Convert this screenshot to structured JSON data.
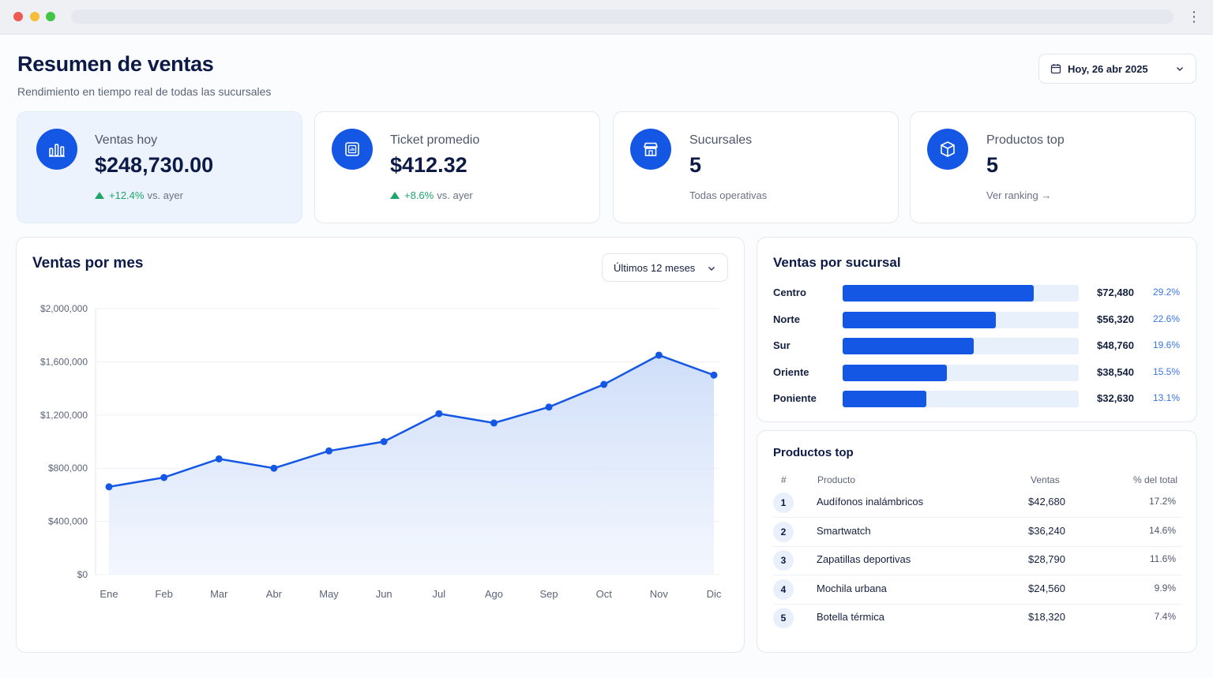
{
  "header": {
    "title": "Resumen de ventas",
    "subtitle": "Rendimiento en tiempo real de todas las sucursales",
    "date_label": "Hoy, 26 abr 2025"
  },
  "kpis": [
    {
      "label": "Ventas hoy",
      "value": "$248,730.00",
      "change": "+12.4%",
      "note": "vs. ayer",
      "icon": "bar-chart-icon"
    },
    {
      "label": "Ticket promedio",
      "value": "$412.32",
      "change": "+8.6%",
      "note": "vs. ayer",
      "icon": "receipt-icon"
    },
    {
      "label": "Sucursales",
      "value": "5",
      "note": "Todas operativas",
      "icon": "store-icon"
    },
    {
      "label": "Productos top",
      "value": "5",
      "note": "Ver ranking →",
      "icon": "box-icon"
    }
  ],
  "monthly": {
    "title": "Ventas por mes",
    "range_label": "Últimos 12 meses"
  },
  "chart_data": {
    "type": "area",
    "categories": [
      "Ene",
      "Feb",
      "Mar",
      "Abr",
      "May",
      "Jun",
      "Jul",
      "Ago",
      "Sep",
      "Oct",
      "Nov",
      "Dic"
    ],
    "values": [
      660000,
      730000,
      870000,
      800000,
      930000,
      1000000,
      1210000,
      1140000,
      1260000,
      1430000,
      1650000,
      1500000
    ],
    "yticks": [
      "$2,000,000",
      "$1,600,000",
      "$1,200,000",
      "$800,000",
      "$400,000",
      "$0"
    ],
    "ytick_values": [
      2000000,
      1600000,
      1200000,
      800000,
      400000,
      0
    ],
    "ylim": [
      0,
      2000000
    ],
    "grid": true,
    "title": "",
    "xlabel": "",
    "ylabel": "",
    "color": "#1557e5"
  },
  "branches": {
    "title": "Ventas por sucursal",
    "items": [
      {
        "name": "Centro",
        "amount": "$72,480",
        "pct": "29.2%",
        "share": 0.81
      },
      {
        "name": "Norte",
        "amount": "$56,320",
        "pct": "22.6%",
        "share": 0.65
      },
      {
        "name": "Sur",
        "amount": "$48,760",
        "pct": "19.6%",
        "share": 0.555
      },
      {
        "name": "Oriente",
        "amount": "$38,540",
        "pct": "15.5%",
        "share": 0.44
      },
      {
        "name": "Poniente",
        "amount": "$32,630",
        "pct": "13.1%",
        "share": 0.355
      }
    ]
  },
  "products": {
    "title": "Productos top",
    "headers": {
      "rank": "#",
      "product": "Producto",
      "sales": "Ventas",
      "share": "% del total"
    },
    "rows": [
      {
        "rank": "1",
        "name": "Audífonos inalámbricos",
        "sales": "$42,680",
        "pct": "17.2%"
      },
      {
        "rank": "2",
        "name": "Smartwatch",
        "sales": "$36,240",
        "pct": "14.6%"
      },
      {
        "rank": "3",
        "name": "Zapatillas deportivas",
        "sales": "$28,790",
        "pct": "11.6%"
      },
      {
        "rank": "4",
        "name": "Mochila urbana",
        "sales": "$24,560",
        "pct": "9.9%"
      },
      {
        "rank": "5",
        "name": "Botella térmica",
        "sales": "$18,320",
        "pct": "7.4%"
      }
    ]
  }
}
